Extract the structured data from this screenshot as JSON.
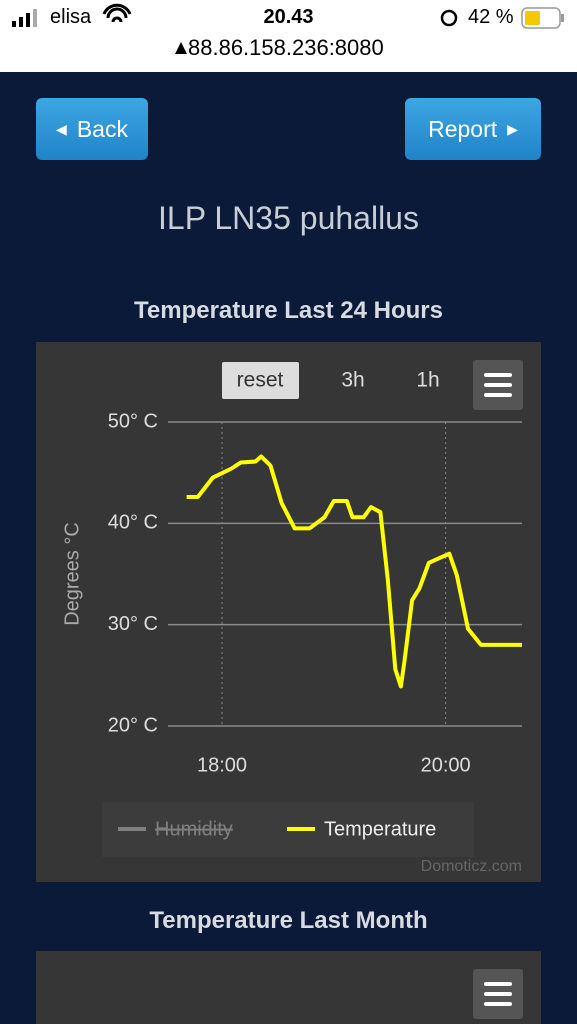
{
  "status_bar": {
    "carrier": "elisa",
    "time": "20.43",
    "battery": "42 %",
    "url": "88.86.158.236:8080"
  },
  "nav": {
    "back": "Back",
    "report": "Report"
  },
  "device_title": "ILP LN35 puhallus",
  "chart_data": {
    "type": "line",
    "title": "Temperature Last 24 Hours",
    "y_label": "Degrees °C",
    "zoom_buttons": [
      "reset",
      "3h",
      "1h"
    ],
    "credit": "Domoticz.com",
    "x": [
      "17:41",
      "17:47",
      "17:55",
      "18:05",
      "18:10",
      "18:18",
      "18:21",
      "18:26",
      "18:32",
      "18:39",
      "18:47",
      "18:55",
      "19:00",
      "19:07",
      "19:10",
      "19:16",
      "19:20",
      "19:25",
      "19:29",
      "19:33",
      "19:36",
      "19:38",
      "19:42",
      "19:46",
      "19:51",
      "19:57",
      "20:02",
      "20:06",
      "20:12",
      "20:19",
      "20:41"
    ],
    "series": [
      {
        "name": "Temperature",
        "color": "#ffff00",
        "values": [
          42.6,
          42.6,
          44.5,
          45.4,
          46.0,
          46.1,
          46.6,
          45.7,
          42.0,
          39.5,
          39.5,
          40.6,
          42.2,
          42.2,
          40.6,
          40.6,
          41.6,
          41.1,
          34.4,
          25.6,
          23.9,
          26.5,
          32.4,
          33.6,
          36.1,
          36.6,
          37.0,
          34.9,
          29.6,
          28.0,
          28.0
        ]
      }
    ],
    "hidden_series": [
      {
        "name": "Humidity",
        "color": "#7f7f7f"
      }
    ],
    "xlim": [
      "17:31",
      "20:41"
    ],
    "xticks": [
      "18:00",
      "20:00"
    ],
    "ylim": [
      20,
      50
    ],
    "yticks": [
      {
        "value": 20,
        "label": "20° C"
      },
      {
        "value": 30,
        "label": "30° C"
      },
      {
        "value": 40,
        "label": "40° C"
      },
      {
        "value": 50,
        "label": "50° C"
      }
    ],
    "grid": true
  },
  "month_panel": {
    "title": "Temperature Last Month"
  }
}
